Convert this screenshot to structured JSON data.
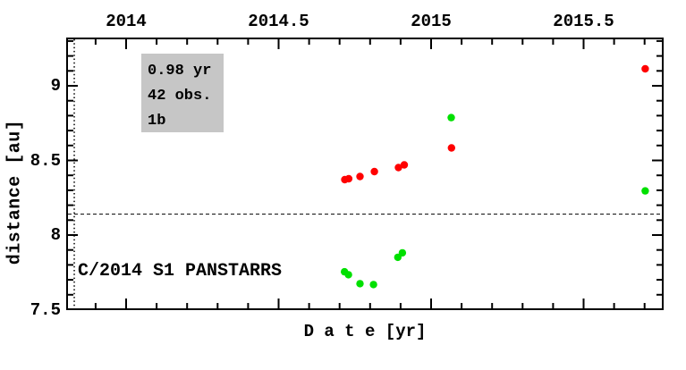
{
  "figure": {
    "info_box": {
      "line1": "0.98 yr",
      "line2": "42 obs.",
      "line3": "1b"
    },
    "object_label": "C/2014 S1 PANSTARRS"
  },
  "chart_data": {
    "type": "scatter",
    "title": "",
    "xlabel": "D a t e [yr]",
    "ylabel": "distance [au]",
    "xlim": [
      2013.806,
      2015.76
    ],
    "ylim": [
      7.5,
      9.317
    ],
    "grid": false,
    "legend_position": "none",
    "x_major_ticks": {
      "values": [
        2014,
        2014.5,
        2015,
        2015.5
      ],
      "labels": [
        "2014",
        "2014.5",
        "2015",
        "2015.5"
      ]
    },
    "y_major_ticks": {
      "values": [
        9,
        8.5,
        8,
        7.5
      ],
      "labels": [
        "9",
        "8.5",
        "8",
        "7.5"
      ]
    },
    "minor_tick_step_x": 0.1,
    "minor_tick_step_y": 0.1,
    "dotted_vline_x": 2013.83,
    "dashed_hline_y": 8.14,
    "annotations": {
      "info_box_lines": [
        "0.98 yr",
        "42 obs.",
        "1b"
      ],
      "object_name": "C/2014 S1 PANSTARRS"
    },
    "series": [
      {
        "name": "red",
        "color": "#ff0000",
        "points": [
          [
            2014.717,
            8.371
          ],
          [
            2014.73,
            8.377
          ],
          [
            2014.767,
            8.392
          ],
          [
            2014.814,
            8.425
          ],
          [
            2014.893,
            8.452
          ],
          [
            2014.912,
            8.47
          ],
          [
            2015.067,
            8.584
          ],
          [
            2015.702,
            9.114
          ]
        ]
      },
      {
        "name": "green",
        "color": "#00e000",
        "points": [
          [
            2014.716,
            7.754
          ],
          [
            2014.729,
            7.734
          ],
          [
            2014.767,
            7.674
          ],
          [
            2014.811,
            7.668
          ],
          [
            2014.891,
            7.851
          ],
          [
            2014.906,
            7.881
          ],
          [
            2015.066,
            8.787
          ],
          [
            2015.702,
            8.296
          ]
        ]
      }
    ]
  }
}
